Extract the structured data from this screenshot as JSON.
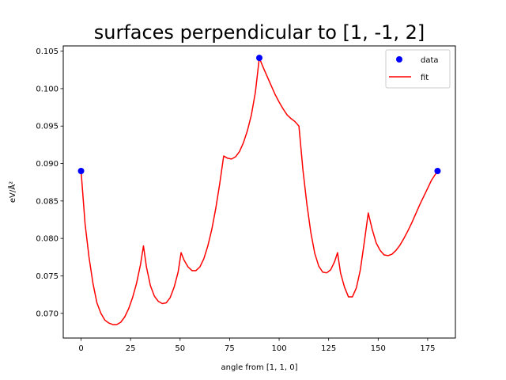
{
  "chart_data": {
    "type": "line",
    "title": "surfaces perpendicular to [1, -1, 2]",
    "xlabel": "angle from [1, 1, 0]",
    "ylabel": "eV/Å²",
    "xlim": [
      -9,
      189
    ],
    "ylim": [
      0.0667,
      0.1057
    ],
    "xticks": [
      0,
      25,
      50,
      75,
      100,
      125,
      150,
      175
    ],
    "yticks": [
      0.07,
      0.075,
      0.08,
      0.085,
      0.09,
      0.095,
      0.1,
      0.105
    ],
    "xtick_labels": [
      "0",
      "25",
      "50",
      "75",
      "100",
      "125",
      "150",
      "175"
    ],
    "ytick_labels": [
      "0.070",
      "0.075",
      "0.080",
      "0.085",
      "0.090",
      "0.095",
      "0.100",
      "0.105"
    ],
    "grid": false,
    "legend_position": "top-right",
    "legend": [
      "data",
      "fit"
    ],
    "series": [
      {
        "name": "data",
        "kind": "scatter",
        "color": "#0000ff",
        "x": [
          0,
          90,
          180
        ],
        "y": [
          0.089,
          0.1041,
          0.089
        ]
      },
      {
        "name": "fit",
        "kind": "line",
        "color": "#ff0000",
        "x": [
          0,
          2,
          4,
          6,
          8,
          10,
          12,
          14,
          16,
          18,
          20,
          22,
          24,
          26,
          28,
          30,
          31.5,
          33,
          35,
          37,
          39,
          41,
          43,
          45,
          47,
          49,
          50.5,
          52,
          54,
          56,
          58,
          60,
          62,
          64,
          66,
          68,
          70,
          72,
          74,
          76,
          78,
          80,
          82,
          84,
          86,
          88,
          90,
          92,
          94,
          96,
          98,
          100,
          102,
          104,
          106,
          108,
          110,
          112,
          114,
          116,
          118,
          120,
          122,
          124,
          126,
          128,
          129.5,
          131,
          133,
          135,
          137,
          139,
          141,
          143,
          145,
          147,
          149,
          151,
          153,
          155,
          157,
          159,
          161,
          163,
          165,
          167,
          169,
          171,
          173,
          175,
          177,
          180
        ],
        "y": [
          0.089,
          0.082,
          0.0775,
          0.074,
          0.0714,
          0.07,
          0.0691,
          0.0687,
          0.0685,
          0.0685,
          0.0688,
          0.0695,
          0.0706,
          0.0721,
          0.074,
          0.0765,
          0.079,
          0.0762,
          0.0737,
          0.0723,
          0.0716,
          0.0713,
          0.0714,
          0.0721,
          0.0735,
          0.0755,
          0.0781,
          0.0771,
          0.0762,
          0.0757,
          0.0757,
          0.0762,
          0.0773,
          0.079,
          0.0812,
          0.084,
          0.0873,
          0.091,
          0.0907,
          0.0906,
          0.0909,
          0.0916,
          0.0928,
          0.0944,
          0.0965,
          0.0995,
          0.1041,
          0.1028,
          0.1016,
          0.1004,
          0.0992,
          0.0982,
          0.0973,
          0.0965,
          0.096,
          0.0956,
          0.095,
          0.0892,
          0.0846,
          0.0808,
          0.078,
          0.0763,
          0.0755,
          0.0754,
          0.0758,
          0.0769,
          0.0781,
          0.0754,
          0.0735,
          0.0722,
          0.0722,
          0.0734,
          0.0758,
          0.0795,
          0.0834,
          0.0812,
          0.0794,
          0.0784,
          0.0778,
          0.0777,
          0.0779,
          0.0784,
          0.0791,
          0.08,
          0.081,
          0.0821,
          0.0833,
          0.0845,
          0.0856,
          0.0867,
          0.0878,
          0.089
        ]
      }
    ]
  }
}
